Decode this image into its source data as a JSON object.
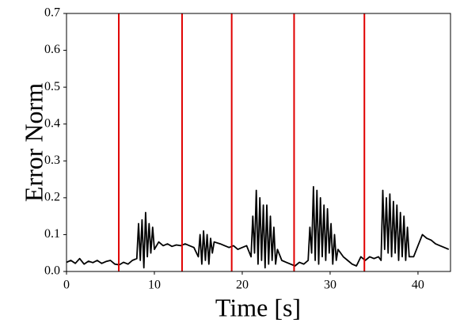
{
  "chart_data": {
    "type": "line",
    "xlabel": "Time [s]",
    "ylabel": "Error Norm",
    "xlim": [
      0,
      43.7
    ],
    "ylim": [
      0,
      0.7
    ],
    "xticks": [
      0,
      10,
      20,
      30,
      40
    ],
    "yticks": [
      {
        "value": 0,
        "label": "0.0"
      },
      0.1,
      0.2,
      0.3,
      0.4,
      0.5,
      0.6,
      0.7
    ],
    "vlines": [
      5.95,
      13.15,
      18.8,
      25.9,
      33.9
    ],
    "vline_color": "#e00000",
    "series": [
      {
        "color": "#000000",
        "x": [
          0,
          0.5,
          1,
          1.5,
          2,
          2.5,
          3,
          3.5,
          4,
          4.5,
          5,
          5.5,
          6,
          6.5,
          7,
          7.5,
          8,
          8.2,
          8.4,
          8.6,
          8.8,
          9,
          9.2,
          9.4,
          9.6,
          9.8,
          10,
          10.5,
          11,
          11.5,
          12,
          12.5,
          13,
          13.5,
          14,
          14.5,
          15,
          15.2,
          15.4,
          15.6,
          15.8,
          16,
          16.2,
          16.4,
          16.6,
          16.8,
          17.5,
          18,
          18.5,
          19,
          19.5,
          20,
          20.5,
          21,
          21.2,
          21.4,
          21.6,
          21.8,
          22,
          22.2,
          22.4,
          22.6,
          22.8,
          23,
          23.2,
          23.4,
          23.6,
          23.8,
          24,
          24.5,
          25,
          25.5,
          26,
          26.5,
          27,
          27.5,
          27.7,
          27.9,
          28.1,
          28.3,
          28.5,
          28.7,
          28.9,
          29.1,
          29.3,
          29.5,
          29.7,
          29.9,
          30.1,
          30.3,
          30.5,
          30.7,
          30.9,
          31.5,
          32,
          32.5,
          33,
          33.5,
          34,
          34.5,
          35,
          35.5,
          35.8,
          36,
          36.2,
          36.4,
          36.6,
          36.8,
          37,
          37.2,
          37.4,
          37.6,
          37.8,
          38,
          38.2,
          38.4,
          38.6,
          38.8,
          39,
          39.5,
          40,
          40.5,
          41,
          41.5,
          42,
          42.5,
          43,
          43.5
        ],
        "values": [
          0.025,
          0.03,
          0.022,
          0.035,
          0.02,
          0.028,
          0.024,
          0.03,
          0.022,
          0.027,
          0.03,
          0.02,
          0.018,
          0.025,
          0.02,
          0.03,
          0.035,
          0.13,
          0.03,
          0.14,
          0.01,
          0.16,
          0.04,
          0.13,
          0.05,
          0.12,
          0.06,
          0.08,
          0.07,
          0.075,
          0.068,
          0.072,
          0.07,
          0.075,
          0.07,
          0.065,
          0.04,
          0.1,
          0.02,
          0.11,
          0.03,
          0.1,
          0.02,
          0.09,
          0.05,
          0.08,
          0.075,
          0.07,
          0.065,
          0.07,
          0.06,
          0.065,
          0.07,
          0.04,
          0.15,
          0.05,
          0.22,
          0.02,
          0.2,
          0.03,
          0.18,
          0.01,
          0.18,
          0.02,
          0.15,
          0.03,
          0.12,
          0.02,
          0.06,
          0.03,
          0.025,
          0.02,
          0.015,
          0.025,
          0.02,
          0.03,
          0.12,
          0.05,
          0.23,
          0.03,
          0.22,
          0.02,
          0.2,
          0.04,
          0.18,
          0.03,
          0.17,
          0.05,
          0.13,
          0.02,
          0.1,
          0.03,
          0.06,
          0.04,
          0.03,
          0.02,
          0.015,
          0.04,
          0.03,
          0.04,
          0.035,
          0.04,
          0.03,
          0.22,
          0.06,
          0.2,
          0.05,
          0.21,
          0.04,
          0.19,
          0.05,
          0.18,
          0.03,
          0.16,
          0.04,
          0.15,
          0.03,
          0.12,
          0.04,
          0.04,
          0.07,
          0.1,
          0.09,
          0.085,
          0.075,
          0.07,
          0.065,
          0.06
        ]
      }
    ]
  }
}
